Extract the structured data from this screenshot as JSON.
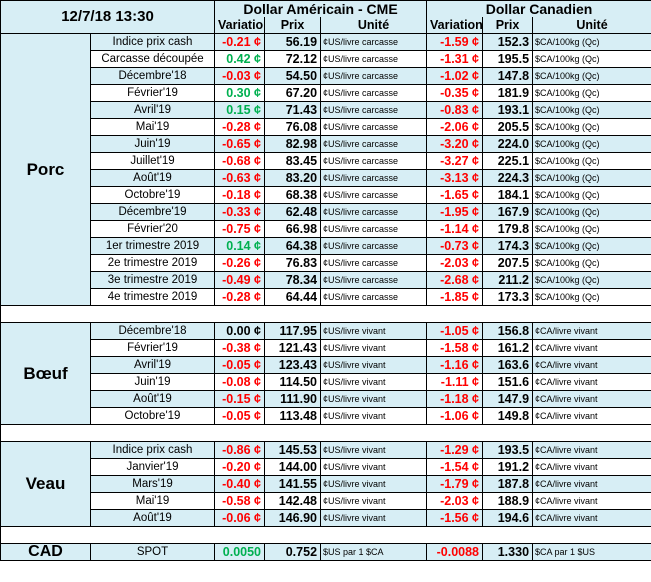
{
  "header": {
    "date": "12/7/18 13:30",
    "usd_group": "Dollar Américain - CME",
    "cad_group": "Dollar Canadien",
    "col_variation": "Variation",
    "col_prix": "Prix",
    "col_unite": "Unité"
  },
  "sections": [
    {
      "name": "Porc",
      "rows": [
        {
          "label": "Indice prix cash",
          "usd_var": "-0.21 ¢",
          "usd_var_sign": "neg",
          "usd_price": "56.19",
          "usd_unit": "¢US/livre carcasse",
          "cad_var": "-1.59 ¢",
          "cad_var_sign": "neg",
          "cad_price": "152.3",
          "cad_unit": "$CA/100kg (Qc)"
        },
        {
          "label": "Carcasse découpée",
          "usd_var": "0.42 ¢",
          "usd_var_sign": "pos",
          "usd_price": "72.12",
          "usd_unit": "¢US/livre carcasse",
          "cad_var": "-1.31 ¢",
          "cad_var_sign": "neg",
          "cad_price": "195.5",
          "cad_unit": "$CA/100kg (Qc)"
        },
        {
          "label": "Décembre'18",
          "usd_var": "-0.03 ¢",
          "usd_var_sign": "neg",
          "usd_price": "54.50",
          "usd_unit": "¢US/livre carcasse",
          "cad_var": "-1.02 ¢",
          "cad_var_sign": "neg",
          "cad_price": "147.8",
          "cad_unit": "$CA/100kg (Qc)"
        },
        {
          "label": "Février'19",
          "usd_var": "0.30 ¢",
          "usd_var_sign": "pos",
          "usd_price": "67.20",
          "usd_unit": "¢US/livre carcasse",
          "cad_var": "-0.35 ¢",
          "cad_var_sign": "neg",
          "cad_price": "181.9",
          "cad_unit": "$CA/100kg (Qc)"
        },
        {
          "label": "Avril'19",
          "usd_var": "0.15 ¢",
          "usd_var_sign": "pos",
          "usd_price": "71.43",
          "usd_unit": "¢US/livre carcasse",
          "cad_var": "-0.83 ¢",
          "cad_var_sign": "neg",
          "cad_price": "193.1",
          "cad_unit": "$CA/100kg (Qc)"
        },
        {
          "label": "Mai'19",
          "usd_var": "-0.28 ¢",
          "usd_var_sign": "neg",
          "usd_price": "76.08",
          "usd_unit": "¢US/livre carcasse",
          "cad_var": "-2.06 ¢",
          "cad_var_sign": "neg",
          "cad_price": "205.5",
          "cad_unit": "$CA/100kg (Qc)"
        },
        {
          "label": "Juin'19",
          "usd_var": "-0.65 ¢",
          "usd_var_sign": "neg",
          "usd_price": "82.98",
          "usd_unit": "¢US/livre carcasse",
          "cad_var": "-3.20 ¢",
          "cad_var_sign": "neg",
          "cad_price": "224.0",
          "cad_unit": "$CA/100kg (Qc)"
        },
        {
          "label": "Juillet'19",
          "usd_var": "-0.68 ¢",
          "usd_var_sign": "neg",
          "usd_price": "83.45",
          "usd_unit": "¢US/livre carcasse",
          "cad_var": "-3.27 ¢",
          "cad_var_sign": "neg",
          "cad_price": "225.1",
          "cad_unit": "$CA/100kg (Qc)"
        },
        {
          "label": "Août'19",
          "usd_var": "-0.63 ¢",
          "usd_var_sign": "neg",
          "usd_price": "83.20",
          "usd_unit": "¢US/livre carcasse",
          "cad_var": "-3.13 ¢",
          "cad_var_sign": "neg",
          "cad_price": "224.3",
          "cad_unit": "$CA/100kg (Qc)"
        },
        {
          "label": "Octobre'19",
          "usd_var": "-0.18 ¢",
          "usd_var_sign": "neg",
          "usd_price": "68.38",
          "usd_unit": "¢US/livre carcasse",
          "cad_var": "-1.65 ¢",
          "cad_var_sign": "neg",
          "cad_price": "184.1",
          "cad_unit": "$CA/100kg (Qc)"
        },
        {
          "label": "Décembre'19",
          "usd_var": "-0.33 ¢",
          "usd_var_sign": "neg",
          "usd_price": "62.48",
          "usd_unit": "¢US/livre carcasse",
          "cad_var": "-1.95 ¢",
          "cad_var_sign": "neg",
          "cad_price": "167.9",
          "cad_unit": "$CA/100kg (Qc)"
        },
        {
          "label": "Février'20",
          "usd_var": "-0.75 ¢",
          "usd_var_sign": "neg",
          "usd_price": "66.98",
          "usd_unit": "¢US/livre carcasse",
          "cad_var": "-1.14 ¢",
          "cad_var_sign": "neg",
          "cad_price": "179.8",
          "cad_unit": "$CA/100kg (Qc)"
        },
        {
          "label": "1er trimestre 2019",
          "usd_var": "0.14 ¢",
          "usd_var_sign": "pos",
          "usd_price": "64.38",
          "usd_unit": "¢US/livre carcasse",
          "cad_var": "-0.73 ¢",
          "cad_var_sign": "neg",
          "cad_price": "174.3",
          "cad_unit": "$CA/100kg (Qc)"
        },
        {
          "label": "2e trimestre 2019",
          "usd_var": "-0.26 ¢",
          "usd_var_sign": "neg",
          "usd_price": "76.83",
          "usd_unit": "¢US/livre carcasse",
          "cad_var": "-2.03 ¢",
          "cad_var_sign": "neg",
          "cad_price": "207.5",
          "cad_unit": "$CA/100kg (Qc)"
        },
        {
          "label": "3e trimestre 2019",
          "usd_var": "-0.49 ¢",
          "usd_var_sign": "neg",
          "usd_price": "78.34",
          "usd_unit": "¢US/livre carcasse",
          "cad_var": "-2.68 ¢",
          "cad_var_sign": "neg",
          "cad_price": "211.2",
          "cad_unit": "$CA/100kg (Qc)"
        },
        {
          "label": "4e trimestre 2019",
          "usd_var": "-0.28 ¢",
          "usd_var_sign": "neg",
          "usd_price": "64.44",
          "usd_unit": "¢US/livre carcasse",
          "cad_var": "-1.85 ¢",
          "cad_var_sign": "neg",
          "cad_price": "173.3",
          "cad_unit": "$CA/100kg (Qc)"
        }
      ]
    },
    {
      "name": "Bœuf",
      "rows": [
        {
          "label": "Décembre'18",
          "usd_var": "0.00 ¢",
          "usd_var_sign": "neu",
          "usd_price": "117.95",
          "usd_unit": "¢US/livre vivant",
          "cad_var": "-1.05 ¢",
          "cad_var_sign": "neg",
          "cad_price": "156.8",
          "cad_unit": "¢CA/livre vivant"
        },
        {
          "label": "Février'19",
          "usd_var": "-0.38 ¢",
          "usd_var_sign": "neg",
          "usd_price": "121.43",
          "usd_unit": "¢US/livre vivant",
          "cad_var": "-1.58 ¢",
          "cad_var_sign": "neg",
          "cad_price": "161.2",
          "cad_unit": "¢CA/livre vivant"
        },
        {
          "label": "Avril'19",
          "usd_var": "-0.05 ¢",
          "usd_var_sign": "neg",
          "usd_price": "123.43",
          "usd_unit": "¢US/livre vivant",
          "cad_var": "-1.16 ¢",
          "cad_var_sign": "neg",
          "cad_price": "163.6",
          "cad_unit": "¢CA/livre vivant"
        },
        {
          "label": "Juin'19",
          "usd_var": "-0.08 ¢",
          "usd_var_sign": "neg",
          "usd_price": "114.50",
          "usd_unit": "¢US/livre vivant",
          "cad_var": "-1.11 ¢",
          "cad_var_sign": "neg",
          "cad_price": "151.6",
          "cad_unit": "¢CA/livre vivant"
        },
        {
          "label": "Août'19",
          "usd_var": "-0.15 ¢",
          "usd_var_sign": "neg",
          "usd_price": "111.90",
          "usd_unit": "¢US/livre vivant",
          "cad_var": "-1.18 ¢",
          "cad_var_sign": "neg",
          "cad_price": "147.9",
          "cad_unit": "¢CA/livre vivant"
        },
        {
          "label": "Octobre'19",
          "usd_var": "-0.05 ¢",
          "usd_var_sign": "neg",
          "usd_price": "113.48",
          "usd_unit": "¢US/livre vivant",
          "cad_var": "-1.06 ¢",
          "cad_var_sign": "neg",
          "cad_price": "149.8",
          "cad_unit": "¢CA/livre vivant"
        }
      ]
    },
    {
      "name": "Veau",
      "rows": [
        {
          "label": "Indice prix cash",
          "usd_var": "-0.86 ¢",
          "usd_var_sign": "neg",
          "usd_price": "145.53",
          "usd_unit": "¢US/livre vivant",
          "cad_var": "-1.29 ¢",
          "cad_var_sign": "neg",
          "cad_price": "193.5",
          "cad_unit": "¢CA/livre vivant"
        },
        {
          "label": "Janvier'19",
          "usd_var": "-0.20 ¢",
          "usd_var_sign": "neg",
          "usd_price": "144.00",
          "usd_unit": "¢US/livre vivant",
          "cad_var": "-1.54 ¢",
          "cad_var_sign": "neg",
          "cad_price": "191.2",
          "cad_unit": "¢CA/livre vivant"
        },
        {
          "label": "Mars'19",
          "usd_var": "-0.40 ¢",
          "usd_var_sign": "neg",
          "usd_price": "141.55",
          "usd_unit": "¢US/livre vivant",
          "cad_var": "-1.79 ¢",
          "cad_var_sign": "neg",
          "cad_price": "187.8",
          "cad_unit": "¢CA/livre vivant"
        },
        {
          "label": "Mai'19",
          "usd_var": "-0.58 ¢",
          "usd_var_sign": "neg",
          "usd_price": "142.48",
          "usd_unit": "¢US/livre vivant",
          "cad_var": "-2.03 ¢",
          "cad_var_sign": "neg",
          "cad_price": "188.9",
          "cad_unit": "¢CA/livre vivant"
        },
        {
          "label": "Août'19",
          "usd_var": "-0.06 ¢",
          "usd_var_sign": "neg",
          "usd_price": "146.90",
          "usd_unit": "¢US/livre vivant",
          "cad_var": "-1.56 ¢",
          "cad_var_sign": "neg",
          "cad_price": "194.6",
          "cad_unit": "¢CA/livre vivant"
        }
      ]
    }
  ],
  "cad": {
    "name": "CAD",
    "label": "SPOT",
    "usd_var": "0.0050",
    "usd_var_sign": "pos",
    "usd_price": "0.752",
    "usd_unit": "$US par 1 $CA",
    "cad_var": "-0.0088",
    "cad_var_sign": "neg",
    "cad_price": "1.330",
    "cad_unit": "$CA par 1 $US"
  },
  "colors": {
    "band": "#d7eef5",
    "negative": "#ff0000",
    "positive": "#00b050",
    "border": "#000000"
  }
}
